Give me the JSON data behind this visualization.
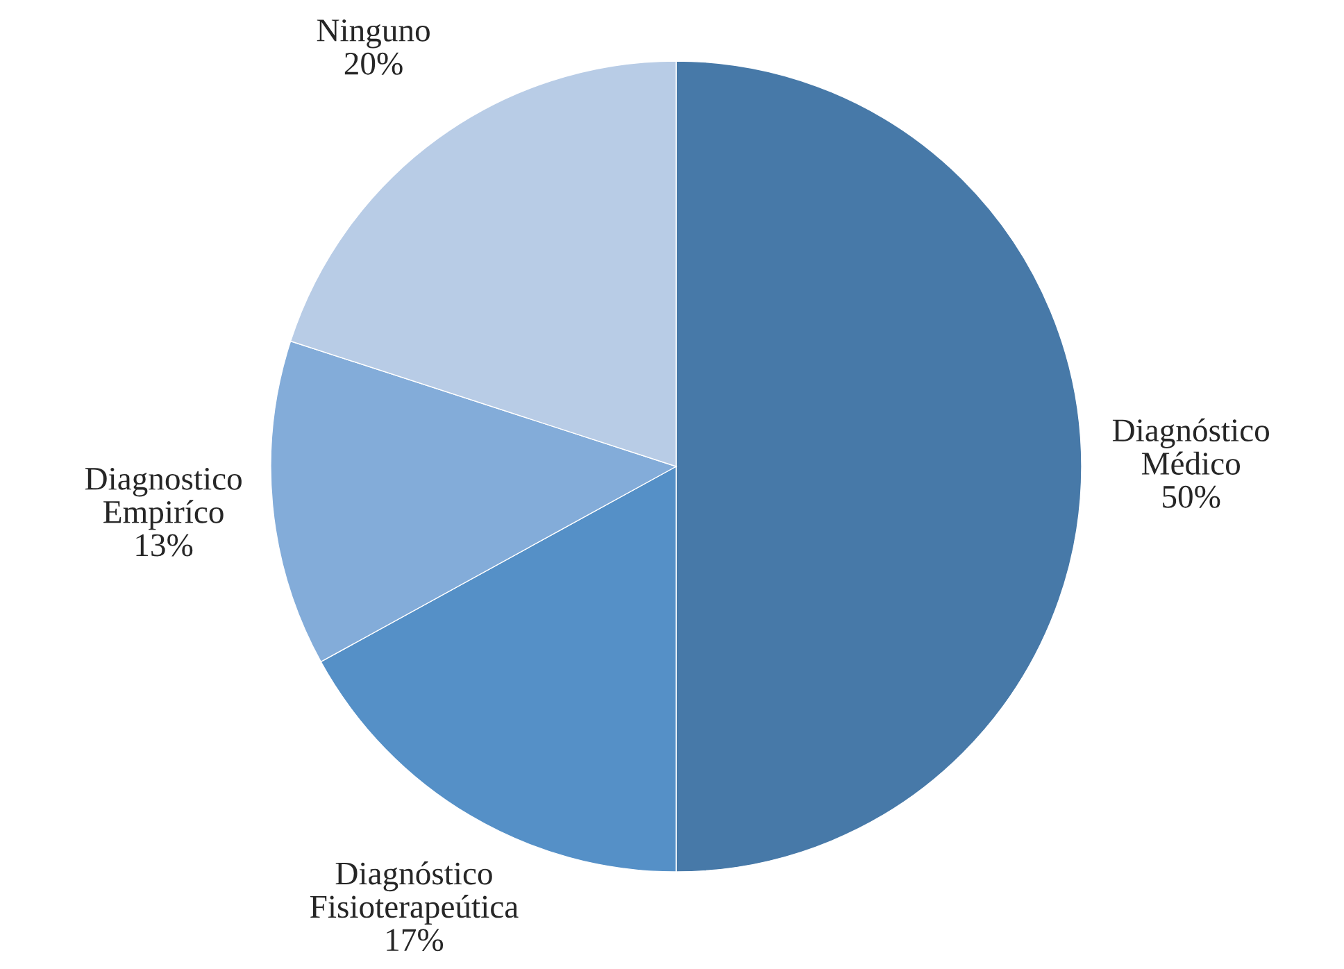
{
  "chart_data": {
    "type": "pie",
    "categories": [
      "Diagnóstico Médico",
      "Diagnóstico Fisioterapeútica",
      "Diagnostico Empiríco",
      "Ninguno"
    ],
    "values": [
      50,
      17,
      13,
      20
    ],
    "value_labels": [
      "50%",
      "17%",
      "13%",
      "20%"
    ],
    "colors": [
      "#4779a8",
      "#5590c7",
      "#83acd9",
      "#b8cce6"
    ]
  }
}
